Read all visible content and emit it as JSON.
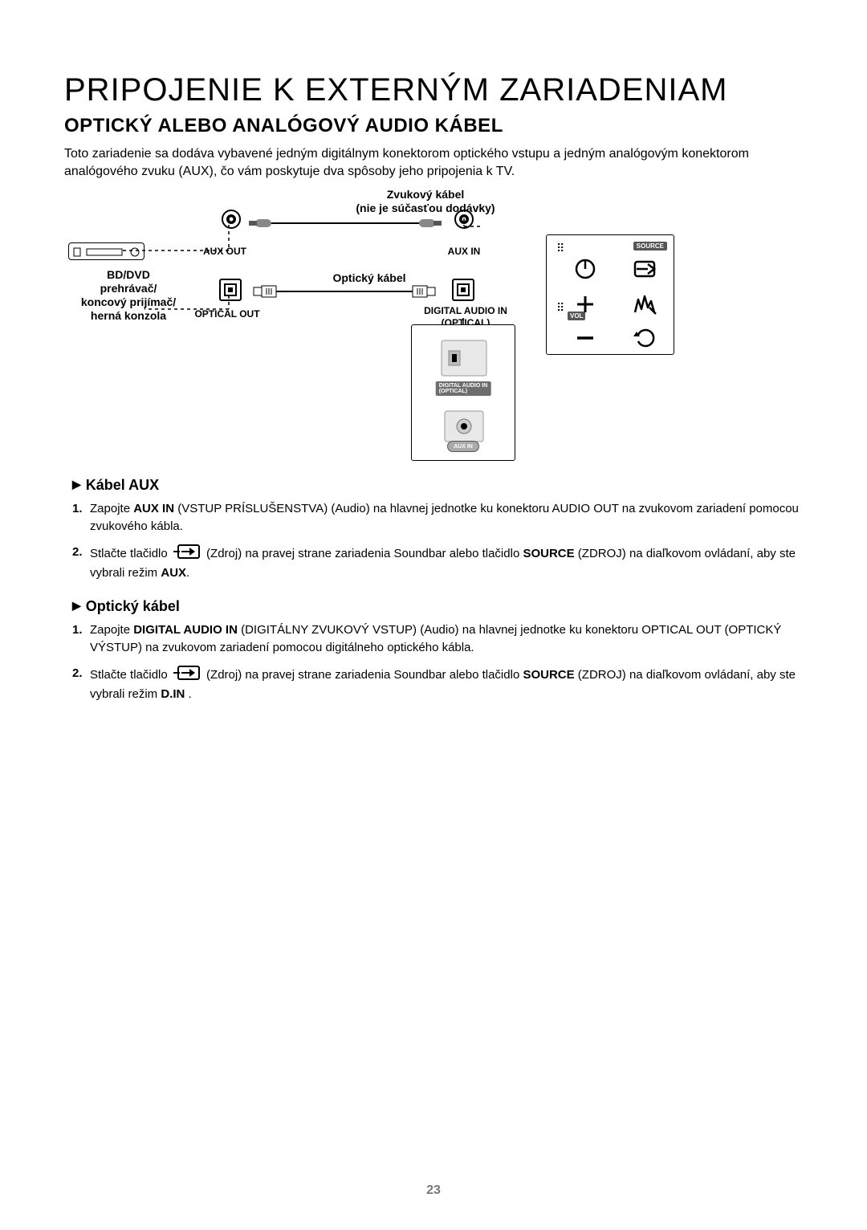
{
  "title": "PRIPOJENIE K EXTERNÝM ZARIADENIAM",
  "subtitle": "OPTICKÝ ALEBO ANALÓGOVÝ AUDIO KÁBEL",
  "intro": "Toto zariadenie sa dodáva vybavené jedným digitálnym konektorom optického vstupu a jedným analógovým konektorom analógového zvuku (AUX), čo vám poskytuje dva spôsoby jeho pripojenia k TV.",
  "diagram": {
    "audio_cable_title": "Zvukový kábel",
    "audio_cable_sub": "(nie je súčasťou dodávky)",
    "aux_out": "AUX OUT",
    "aux_in": "AUX IN",
    "optical_cable": "Optický kábel",
    "optical_out": "OPTICAL OUT",
    "digital_audio_in": "DIGITAL AUDIO IN",
    "digital_audio_in_sub": "(OPTICAL)",
    "device_label_l1": "BD/DVD",
    "device_label_l2": "prehrávač/",
    "device_label_l3": "koncový prijímač/",
    "device_label_l4": "herná konzola",
    "panel_opt_label": "DIGITAL AUDIO IN\n(OPTICAL)",
    "panel_aux_label": "AUX IN",
    "source_tag": "SOURCE",
    "vol_tag": "VOL"
  },
  "aux_section": {
    "heading": "Kábel AUX",
    "steps": [
      {
        "n": "1.",
        "html": "Zapojte <b>AUX IN</b> (VSTUP PRÍSLUŠENSTVA) (Audio) na hlavnej jednotke ku konektoru AUDIO OUT na zvukovom zariadení pomocou zvukového kábla."
      },
      {
        "n": "2.",
        "html": "Stlačte tlačidlo {ICON} (Zdroj) na pravej strane zariadenia Soundbar alebo tlačidlo <b>SOURCE</b> (ZDROJ) na diaľkovom ovládaní, aby ste vybrali režim <b>AUX</b>."
      }
    ]
  },
  "opt_section": {
    "heading": "Optický kábel",
    "steps": [
      {
        "n": "1.",
        "html": "Zapojte <b>DIGITAL AUDIO IN</b> (DIGITÁLNY ZVUKOVÝ VSTUP) (Audio) na hlavnej jednotke ku konektoru OPTICAL OUT (OPTICKÝ VÝSTUP) na zvukovom zariadení pomocou digitálneho optického kábla."
      },
      {
        "n": "2.",
        "html": "Stlačte tlačidlo {ICON} (Zdroj) na pravej strane zariadenia Soundbar alebo tlačidlo <b>SOURCE</b> (ZDROJ) na diaľkovom ovládaní, aby ste vybrali režim <b>D.IN</b> ."
      }
    ]
  },
  "page_number": "23",
  "colors": {
    "text": "#000000",
    "muted": "#777777"
  }
}
